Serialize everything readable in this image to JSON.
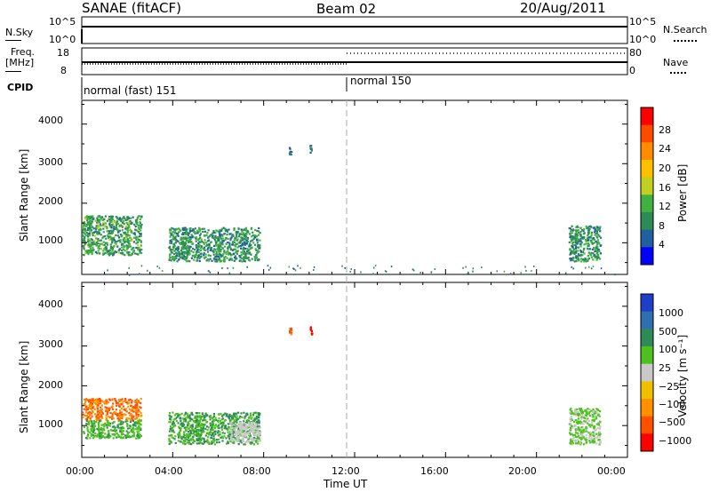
{
  "header": {
    "radar": "SANAE (fitACF)",
    "beam": "Beam 02",
    "date": "20/Aug/2011"
  },
  "noise_panel": {
    "left_label": "N.Sky",
    "right_label": "N.Search",
    "left_ticks": [
      "10^5",
      "10^0"
    ],
    "right_ticks": [
      "10^5",
      "10^0"
    ]
  },
  "freq_panel": {
    "left_label_line1": "Freq.",
    "left_label_line2": "[MHz]",
    "right_label": "Nave",
    "left_ticks": [
      "18",
      "8"
    ],
    "right_ticks": [
      "80",
      "0"
    ]
  },
  "cpid_panel": {
    "label": "CPID",
    "modes": [
      "normal (fast) 151",
      "normal 150"
    ]
  },
  "axes": {
    "ylabel": "Slant Range [km]",
    "xlabel": "Time UT",
    "yticks": [
      "4000",
      "3000",
      "2000",
      "1000"
    ],
    "xticks": [
      "00:00",
      "04:00",
      "08:00",
      "12:00",
      "16:00",
      "20:00",
      "00:00"
    ]
  },
  "power_colorbar": {
    "label": "Power [dB]",
    "ticks": [
      "28",
      "24",
      "20",
      "16",
      "12",
      "8",
      "4"
    ],
    "colors": [
      "#ff0000",
      "#ff4a00",
      "#ff8c00",
      "#ffc000",
      "#c0d020",
      "#40b040",
      "#2e8b57",
      "#205fa0",
      "#0000ff"
    ]
  },
  "velocity_colorbar": {
    "label": "Velocity [m s⁻¹]",
    "ticks": [
      "1000",
      "500",
      "100",
      "25",
      "−25",
      "−100",
      "−500",
      "−1000"
    ],
    "colors": [
      "#1f3fc8",
      "#2f6fb0",
      "#2e8b57",
      "#50c020",
      "#c8c8c8",
      "#f0c000",
      "#ff9000",
      "#ff5000",
      "#ff0000"
    ]
  },
  "chart_data": [
    {
      "type": "heatmap",
      "name": "power",
      "xlabel": "Time UT",
      "ylabel": "Slant Range [km]",
      "xlim": [
        0,
        24
      ],
      "ylim": [
        200,
        4600
      ],
      "colorbar_label": "Power [dB]",
      "clim": [
        0,
        30
      ],
      "regions": [
        {
          "t": [
            0.0,
            2.6
          ],
          "r": [
            700,
            1700
          ],
          "value": 10
        },
        {
          "t": [
            3.8,
            7.8
          ],
          "r": [
            550,
            1400
          ],
          "value": 9
        },
        {
          "t": [
            21.4,
            22.8
          ],
          "r": [
            550,
            1450
          ],
          "value": 9
        },
        {
          "t": [
            9.1,
            9.2
          ],
          "r": [
            3250,
            3500
          ],
          "value": 7
        },
        {
          "t": [
            10.0,
            10.1
          ],
          "r": [
            3300,
            3500
          ],
          "value": 6
        },
        {
          "t": [
            0.0,
            24.0
          ],
          "r": [
            200,
            450
          ],
          "value": 8
        }
      ]
    },
    {
      "type": "heatmap",
      "name": "velocity",
      "xlabel": "Time UT",
      "ylabel": "Slant Range [km]",
      "xlim": [
        0,
        24
      ],
      "ylim": [
        200,
        4600
      ],
      "colorbar_label": "Velocity [m s⁻¹]",
      "regions": [
        {
          "t": [
            0.0,
            2.6
          ],
          "r": [
            1150,
            1700
          ],
          "value": -300
        },
        {
          "t": [
            0.0,
            2.6
          ],
          "r": [
            700,
            1150
          ],
          "value": 50
        },
        {
          "t": [
            3.8,
            7.8
          ],
          "r": [
            550,
            1350
          ],
          "value": 60
        },
        {
          "t": [
            6.5,
            7.8
          ],
          "r": [
            600,
            1100
          ],
          "value": 0
        },
        {
          "t": [
            21.4,
            22.8
          ],
          "r": [
            550,
            1450
          ],
          "value": 30
        },
        {
          "t": [
            9.1,
            9.2
          ],
          "r": [
            3250,
            3500
          ],
          "value": -400
        },
        {
          "t": [
            10.0,
            10.1
          ],
          "r": [
            3300,
            3500
          ],
          "value": -1000
        }
      ]
    }
  ]
}
